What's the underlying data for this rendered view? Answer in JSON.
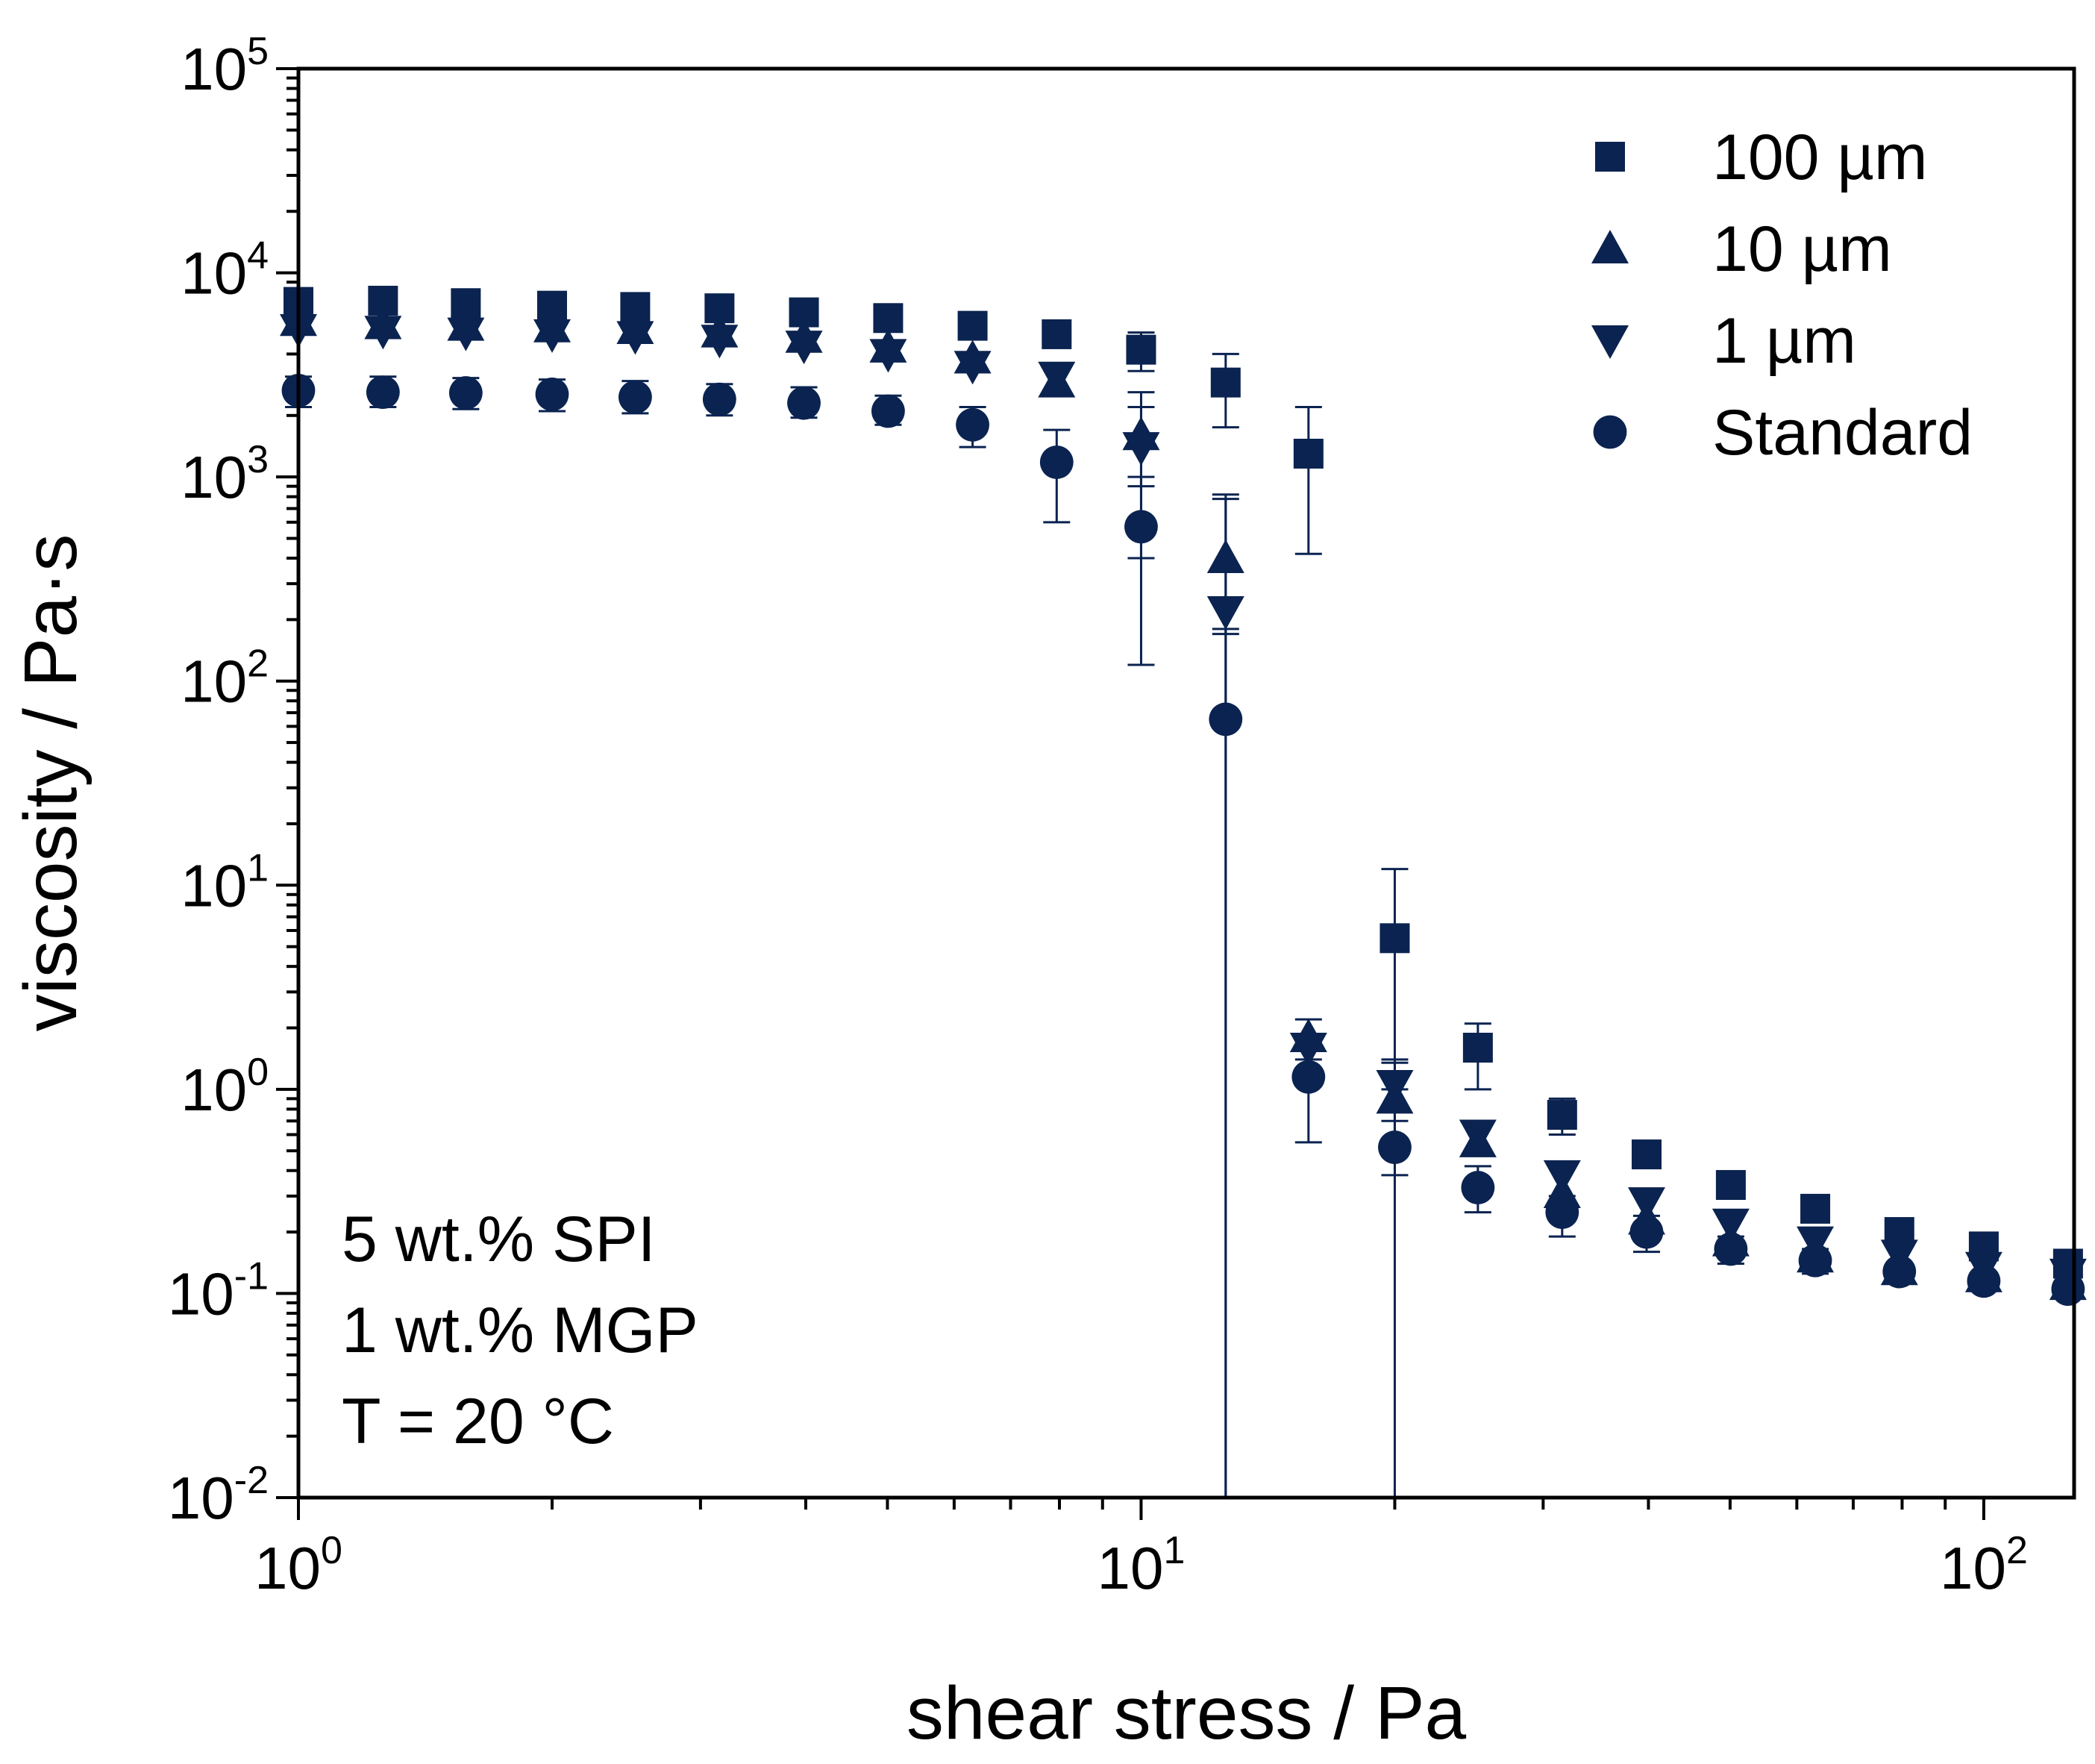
{
  "chart_data": {
    "type": "scatter",
    "xlabel": "shear stress / Pa",
    "ylabel": "viscosity / Pa·s",
    "xscale": "log",
    "yscale": "log",
    "xlim": [
      1,
      128
    ],
    "ylim": [
      0.01,
      100000
    ],
    "x_ticks": [
      {
        "base": "10",
        "exp": "0",
        "value": 1
      },
      {
        "base": "10",
        "exp": "1",
        "value": 10
      },
      {
        "base": "10",
        "exp": "2",
        "value": 100
      }
    ],
    "y_ticks": [
      {
        "base": "10",
        "exp": "-2",
        "value": 0.01
      },
      {
        "base": "10",
        "exp": "-1",
        "value": 0.1
      },
      {
        "base": "10",
        "exp": "0",
        "value": 1
      },
      {
        "base": "10",
        "exp": "1",
        "value": 10
      },
      {
        "base": "10",
        "exp": "2",
        "value": 100
      },
      {
        "base": "10",
        "exp": "3",
        "value": 1000
      },
      {
        "base": "10",
        "exp": "4",
        "value": 10000
      },
      {
        "base": "10",
        "exp": "5",
        "value": 100000
      }
    ],
    "legend_position": "top-right",
    "color": "#0b2350",
    "x": [
      1.0,
      1.26,
      1.58,
      2.0,
      2.51,
      3.16,
      3.98,
      5.01,
      6.31,
      7.94,
      10.0,
      12.6,
      15.8,
      20.0,
      25.1,
      31.6,
      39.8,
      50.1,
      63.1,
      79.4,
      100.0,
      125.9
    ],
    "series": [
      {
        "name": "100 µm",
        "marker": "square",
        "values": [
          7200,
          7300,
          7100,
          6900,
          6800,
          6700,
          6400,
          6000,
          5500,
          5000,
          4200,
          2900,
          1300,
          5.5,
          1.6,
          0.75,
          0.48,
          0.34,
          0.26,
          0.2,
          0.17,
          0.14
        ],
        "error_low": [
          null,
          null,
          null,
          null,
          null,
          null,
          null,
          null,
          null,
          null,
          3300,
          1750,
          420,
          0.38,
          1.0,
          0.6,
          null,
          null,
          null,
          null,
          null,
          null
        ],
        "error_high": [
          null,
          null,
          null,
          null,
          null,
          null,
          null,
          null,
          null,
          null,
          5100,
          4000,
          2200,
          12.0,
          2.1,
          0.9,
          null,
          null,
          null,
          null,
          null,
          null
        ]
      },
      {
        "name": "10 µm",
        "marker": "triangle-up",
        "values": [
          5800,
          5600,
          5500,
          5400,
          5300,
          5100,
          4800,
          4300,
          3800,
          2900,
          1600,
          400,
          1.8,
          0.9,
          0.55,
          0.31,
          0.23,
          0.18,
          0.15,
          0.13,
          0.12,
          0.11
        ],
        "error_low": [
          null,
          null,
          null,
          null,
          null,
          null,
          null,
          null,
          null,
          null,
          400,
          0.01,
          1.4,
          0.5,
          null,
          null,
          null,
          null,
          null,
          null,
          null,
          null
        ],
        "error_high": [
          null,
          null,
          null,
          null,
          null,
          null,
          null,
          null,
          null,
          null,
          2600,
          820,
          2.2,
          1.4,
          null,
          null,
          null,
          null,
          null,
          null,
          null,
          null
        ]
      },
      {
        "name": "1 µm",
        "marker": "triangle-down",
        "values": [
          5300,
          5200,
          5100,
          5000,
          4900,
          4700,
          4400,
          4000,
          3500,
          3100,
          1400,
          220,
          1.6,
          1.05,
          0.6,
          0.38,
          0.28,
          0.22,
          0.18,
          0.155,
          0.135,
          0.125
        ],
        "error_low": [
          null,
          null,
          null,
          null,
          null,
          null,
          null,
          null,
          null,
          null,
          900,
          170,
          null,
          0.7,
          null,
          null,
          null,
          null,
          null,
          null,
          null,
          null
        ],
        "error_high": [
          null,
          null,
          null,
          null,
          null,
          null,
          null,
          null,
          null,
          null,
          2200,
          780,
          null,
          1.35,
          null,
          null,
          null,
          null,
          null,
          null,
          null,
          null
        ]
      },
      {
        "name": "Standard",
        "marker": "circle",
        "values": [
          2650,
          2600,
          2580,
          2540,
          2460,
          2400,
          2300,
          2100,
          1800,
          1180,
          570,
          65,
          1.15,
          0.52,
          0.33,
          0.25,
          0.2,
          0.165,
          0.145,
          0.128,
          0.115,
          0.105
        ],
        "error_low": [
          2200,
          2200,
          2150,
          2100,
          2050,
          2000,
          1950,
          1800,
          1400,
          600,
          120,
          0.01,
          0.55,
          0.01,
          0.25,
          0.19,
          0.16,
          0.14,
          0.125,
          null,
          null,
          null
        ],
        "error_high": [
          3100,
          3100,
          3050,
          3000,
          2950,
          2850,
          2750,
          2500,
          2200,
          1700,
          1000,
          180,
          1.7,
          1.0,
          0.42,
          0.3,
          0.24,
          0.19,
          0.165,
          null,
          null,
          null
        ]
      }
    ],
    "annotations": [
      "5 wt.% SPI",
      "1 wt.% MGP",
      "T = 20 °C"
    ]
  }
}
